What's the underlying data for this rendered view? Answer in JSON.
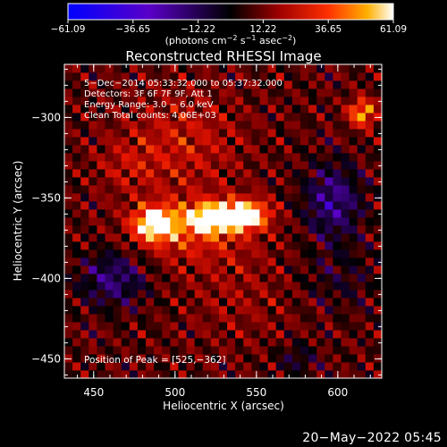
{
  "chart_data": {
    "type": "heatmap",
    "title": "Reconstructed RHESSI Image",
    "xlabel": "Heliocentric X (arcsec)",
    "ylabel": "Heliocentric Y (arcsec)",
    "xlim": [
      432,
      627
    ],
    "ylim": [
      -462,
      -267
    ],
    "x_ticks": [
      {
        "value": 450,
        "label": "450"
      },
      {
        "value": 500,
        "label": "500"
      },
      {
        "value": 550,
        "label": "550"
      },
      {
        "value": 600,
        "label": "600"
      }
    ],
    "y_ticks": [
      {
        "value": -300,
        "label": "−300"
      },
      {
        "value": -350,
        "label": "−350"
      },
      {
        "value": -400,
        "label": "−400"
      },
      {
        "value": -450,
        "label": "−450"
      }
    ],
    "colorbar": {
      "min": -61.09,
      "max": 61.09,
      "tick_labels": [
        "−61.09",
        "−36.65",
        "−12.22",
        "12.22",
        "36.65",
        "61.09"
      ],
      "unit_prefix": "(photons cm",
      "unit_sup1": "−2",
      "unit_mid": " s",
      "unit_sup2": "−1",
      "unit_mid2": " asec",
      "unit_sup3": "−2",
      "unit_suffix": ")"
    },
    "annotations": [
      "5−Dec−2014 05:33:32.000 to 05:37:32.000",
      "Detectors: 3F 6F 7F 9F, Att 1",
      "Energy Range: 3.0 − 6.0 keV",
      "Clean     Total counts: 4.06E+03"
    ],
    "peak_label": "Position of Peak = [525,−362]",
    "peak": [
      525,
      -362
    ],
    "sources": [
      {
        "x": 488,
        "y": -366,
        "sx": 9,
        "sy": 7,
        "amp": 55
      },
      {
        "x": 525,
        "y": -362,
        "sx": 11,
        "sy": 6,
        "amp": 61
      },
      {
        "x": 545,
        "y": -360,
        "sx": 9,
        "sy": 6,
        "amp": 52
      },
      {
        "x": 510,
        "y": -370,
        "sx": 25,
        "sy": 14,
        "amp": 22
      },
      {
        "x": 505,
        "y": -315,
        "sx": 25,
        "sy": 22,
        "amp": 16
      },
      {
        "x": 615,
        "y": -297,
        "sx": 6,
        "sy": 6,
        "amp": 40
      },
      {
        "x": 470,
        "y": -330,
        "sx": 14,
        "sy": 12,
        "amp": 10
      },
      {
        "x": 540,
        "y": -410,
        "sx": 25,
        "sy": 22,
        "amp": 8
      },
      {
        "x": 597,
        "y": -352,
        "sx": 12,
        "sy": 16,
        "amp": -30
      },
      {
        "x": 462,
        "y": -400,
        "sx": 14,
        "sy": 12,
        "amp": -26
      },
      {
        "x": 575,
        "y": -450,
        "sx": 9,
        "sy": 7,
        "amp": -14
      },
      {
        "x": 600,
        "y": -400,
        "sx": 18,
        "sy": 14,
        "amp": -10
      }
    ]
  },
  "timestamp": "20−May−2022 05:45"
}
